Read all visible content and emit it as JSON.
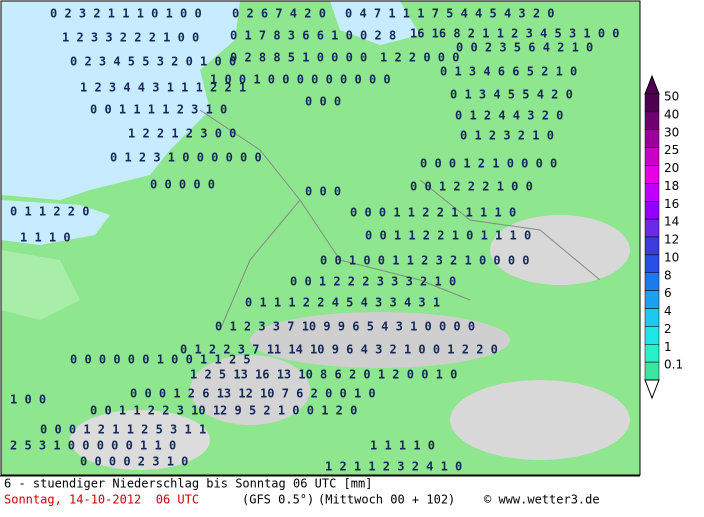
{
  "map_labels": [
    "0 2 3 2 1 1 1 0 1 0 0",
    "0 2 6 7 4 2 0",
    "0 4 7 1 1 1 7 5 4 4 5 4 3 2 0",
    "1 2 3 3 2 2 2 1 0 0",
    "0 1 7 8 3 6 6 1 0 0 2 8",
    "16 16 8 2 1 1 2 3 4 5 3 1 0 0",
    "0 2 3 4 5 5 3 2 0 1 0 0",
    "0 2 8 8 5 1 0 0 0 0",
    "1 2 2 0 0 0",
    "0 0 2 3 5 6 4 2 1 0",
    "1 0 0 1 0 0 0 0 0 0 0 0 0",
    "1 2 3 4 4 3 1 1 1 2 2 1",
    "0 1 3 4 6 6 5 2 1 0",
    "0 0 1 1 1 1 2 3 1 0",
    "0 0 0",
    "0 1 3 4 5 5 4 2 0",
    "1 2 2 1 2 3 0 0",
    "0 1 2 4 4 3 2 0",
    "0 1 2 3 1 0 0 0 0 0 0",
    "0 1 2 3 2 1 0",
    "0 0 0 0 0",
    "0 0 0 1 2 1 0 0 0 0",
    "0 0 0",
    "0 0 1 2 2 2 1 0 0",
    "0 1 1 2 2 0",
    "0 0 0 1 1 2 2 1 1 1 1 0",
    "1 1 1 0",
    "0 0 1 1 2 2 1 0 1 1 1 0",
    "0 0 1 0 0 1 1 2 3 2 1 0 0 0 0",
    "0 0 1 2 2 2 3 3 3 2 1 0",
    "0 1 1 1 2 2 4 5 4 3 3 4 3 1",
    "0 1 2 3 3 7 10 9 9 6 5 4 3 1 0 0 0 0",
    "0 1 2 2 3 7 11 14 10 9 6 4 3 2 1 0 0 1 2 2 0",
    "0 0 0 0 0 0 1 0 0 1 1 2 5",
    "1 2 5 13 16 13 10 8 6 2 0 1 2 0 0 1 0",
    "0 0 0 1 2 6 13 12 10 7 6 2 0 0 1 0",
    "1 0 0",
    "0 0 1 1 2 2 3 10 12 9 5 2 1 0 0 1 2 0",
    "0 0 0 1 2 1 1 2 5 3 1 1",
    "2 5 3 1 0 0 0 0 0 1 1 0",
    "0 0 0 0 2 3 1 0",
    "1 2 1 1 2 3 2 4 1 0",
    "1 1 1 1 0"
  ],
  "legend": {
    "labels": [
      "50",
      "40",
      "30",
      "25",
      "20",
      "18",
      "16",
      "14",
      "12",
      "10",
      "8",
      "6",
      "4",
      "2",
      "1",
      "0.1"
    ],
    "colors": [
      "#500050",
      "#700070",
      "#9c009c",
      "#c800c8",
      "#e600e6",
      "#c000ff",
      "#9400ff",
      "#6a2ae6",
      "#3c3cdc",
      "#2850e6",
      "#1e78f0",
      "#1ea0f0",
      "#1ec8f0",
      "#1ee6e6",
      "#28f0c8",
      "#3ce6a0"
    ]
  },
  "footer": {
    "line1": "6 - stuendiger Niederschlag bis Sonntag 06 UTC [mm]",
    "date": "Sonntag, 14-10-2012  06 UTC",
    "model": "(GFS 0.5°)",
    "run": "(Mittwoch 00 + 102)",
    "copyright": "© www.wetter3.de"
  }
}
